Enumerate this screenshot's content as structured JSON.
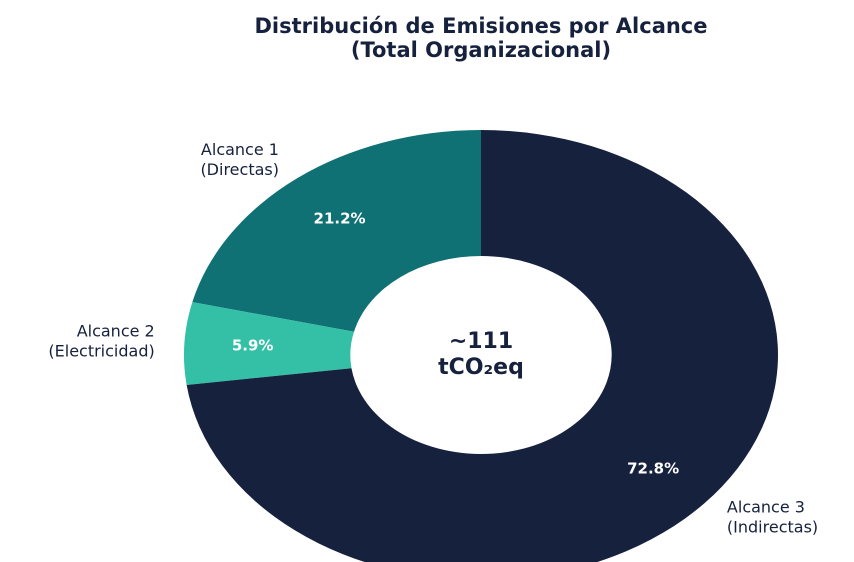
{
  "chart_data": {
    "type": "donut",
    "title": [
      "Distribución de Emisiones por Alcance",
      "(Total Organizacional)"
    ],
    "categories": [
      [
        "Alcance 1",
        "(Directas)"
      ],
      [
        "Alcance 2",
        "(Electricidad)"
      ],
      [
        "Alcance 3",
        "(Indirectas)"
      ]
    ],
    "values": [
      21.2,
      5.9,
      72.8
    ],
    "value_labels": [
      "21.2%",
      "5.9%",
      "72.8%"
    ],
    "colors": [
      "#0f7173",
      "#34c0a6",
      "#16213e"
    ],
    "center_text": [
      "~111",
      "tCO₂eq"
    ]
  }
}
